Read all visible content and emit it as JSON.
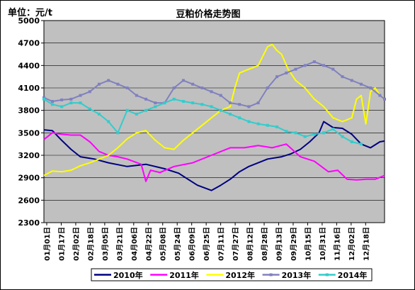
{
  "chart_data": {
    "type": "line",
    "title": "豆粕价格走势图",
    "unit_label": "单位：元/t",
    "xlabel": "",
    "ylabel": "",
    "ylim": [
      2300,
      5000
    ],
    "y_ticks": [
      2300,
      2600,
      2900,
      3200,
      3500,
      3800,
      4100,
      4400,
      4700,
      5000
    ],
    "x_ticks": [
      "01月01日",
      "01月17日",
      "02月02日",
      "02月18日",
      "03月05日",
      "03月21日",
      "04月06日",
      "04月22日",
      "05月08日",
      "05月24日",
      "06月09日",
      "06月25日",
      "07月11日",
      "07月27日",
      "08月12日",
      "08月28日",
      "09月13日",
      "09月29日",
      "10月15日",
      "10月31日",
      "11月16日",
      "12月02日",
      "12月18日"
    ],
    "x_domain": [
      1,
      365
    ],
    "grid": "horizontal",
    "legend_position": "bottom",
    "plot_background": "#c0c0c0",
    "series": [
      {
        "name": "2010年",
        "color": "#000080",
        "x": [
          1,
          10,
          20,
          30,
          40,
          55,
          70,
          90,
          110,
          130,
          145,
          155,
          165,
          180,
          190,
          200,
          210,
          220,
          230,
          240,
          255,
          265,
          275,
          285,
          295,
          300,
          310,
          320,
          330,
          340,
          350,
          360,
          365
        ],
        "y": [
          3540,
          3530,
          3400,
          3280,
          3180,
          3150,
          3100,
          3050,
          3080,
          3020,
          2960,
          2880,
          2800,
          2730,
          2800,
          2880,
          2980,
          3050,
          3100,
          3150,
          3180,
          3220,
          3280,
          3380,
          3500,
          3650,
          3570,
          3560,
          3480,
          3350,
          3300,
          3380,
          3390
        ]
      },
      {
        "name": "2011年",
        "color": "#ff00ff",
        "x": [
          1,
          10,
          20,
          30,
          40,
          50,
          60,
          70,
          80,
          90,
          105,
          110,
          115,
          125,
          140,
          160,
          180,
          200,
          215,
          230,
          245,
          260,
          275,
          290,
          305,
          315,
          325,
          335,
          345,
          355,
          365
        ],
        "y": [
          3410,
          3500,
          3480,
          3470,
          3470,
          3380,
          3250,
          3200,
          3180,
          3150,
          3080,
          2850,
          3000,
          2970,
          3050,
          3100,
          3200,
          3300,
          3300,
          3330,
          3300,
          3350,
          3180,
          3120,
          2980,
          3000,
          2880,
          2870,
          2880,
          2880,
          2930
        ]
      },
      {
        "name": "2012年",
        "color": "#ffff00",
        "x": [
          1,
          10,
          20,
          30,
          40,
          50,
          60,
          70,
          80,
          90,
          100,
          110,
          120,
          130,
          140,
          150,
          160,
          170,
          180,
          190,
          200,
          205,
          210,
          220,
          230,
          240,
          245,
          250,
          255,
          262,
          270,
          280,
          290,
          300,
          310,
          320,
          330,
          335,
          340,
          345,
          350,
          355,
          360,
          365
        ],
        "y": [
          2930,
          2990,
          2980,
          3000,
          3060,
          3100,
          3150,
          3200,
          3300,
          3420,
          3500,
          3530,
          3400,
          3300,
          3280,
          3400,
          3500,
          3600,
          3700,
          3800,
          3850,
          4100,
          4300,
          4350,
          4400,
          4650,
          4680,
          4600,
          4550,
          4350,
          4200,
          4100,
          3950,
          3850,
          3700,
          3650,
          3700,
          3950,
          4000,
          3620,
          4050,
          4100,
          4000,
          3950
        ]
      },
      {
        "name": "2013年",
        "color": "#8080c0",
        "x": [
          1,
          10,
          20,
          30,
          40,
          50,
          60,
          70,
          80,
          90,
          100,
          110,
          120,
          130,
          140,
          150,
          160,
          170,
          180,
          190,
          200,
          210,
          220,
          230,
          240,
          250,
          260,
          270,
          280,
          290,
          300,
          310,
          320,
          330,
          340,
          350,
          360,
          365
        ],
        "y": [
          3970,
          3920,
          3940,
          3950,
          4000,
          4050,
          4150,
          4200,
          4150,
          4100,
          4000,
          3950,
          3900,
          3900,
          4100,
          4200,
          4150,
          4100,
          4050,
          4000,
          3900,
          3880,
          3850,
          3900,
          4100,
          4250,
          4300,
          4350,
          4400,
          4450,
          4400,
          4350,
          4250,
          4200,
          4150,
          4100,
          4000,
          3950
        ]
      },
      {
        "name": "2014年",
        "color": "#33cccc",
        "x": [
          1,
          10,
          20,
          30,
          40,
          50,
          60,
          70,
          80,
          90,
          100,
          110,
          120,
          130,
          140,
          150,
          160,
          170,
          180,
          190,
          200,
          210,
          220,
          230,
          240,
          250,
          260,
          270,
          280,
          290,
          300,
          310,
          320,
          330,
          340
        ],
        "y": [
          3950,
          3880,
          3850,
          3900,
          3900,
          3820,
          3750,
          3650,
          3500,
          3800,
          3750,
          3800,
          3850,
          3900,
          3950,
          3920,
          3900,
          3880,
          3850,
          3800,
          3750,
          3700,
          3650,
          3620,
          3600,
          3580,
          3520,
          3500,
          3450,
          3480,
          3500,
          3550,
          3450,
          3380,
          3350
        ]
      }
    ]
  }
}
